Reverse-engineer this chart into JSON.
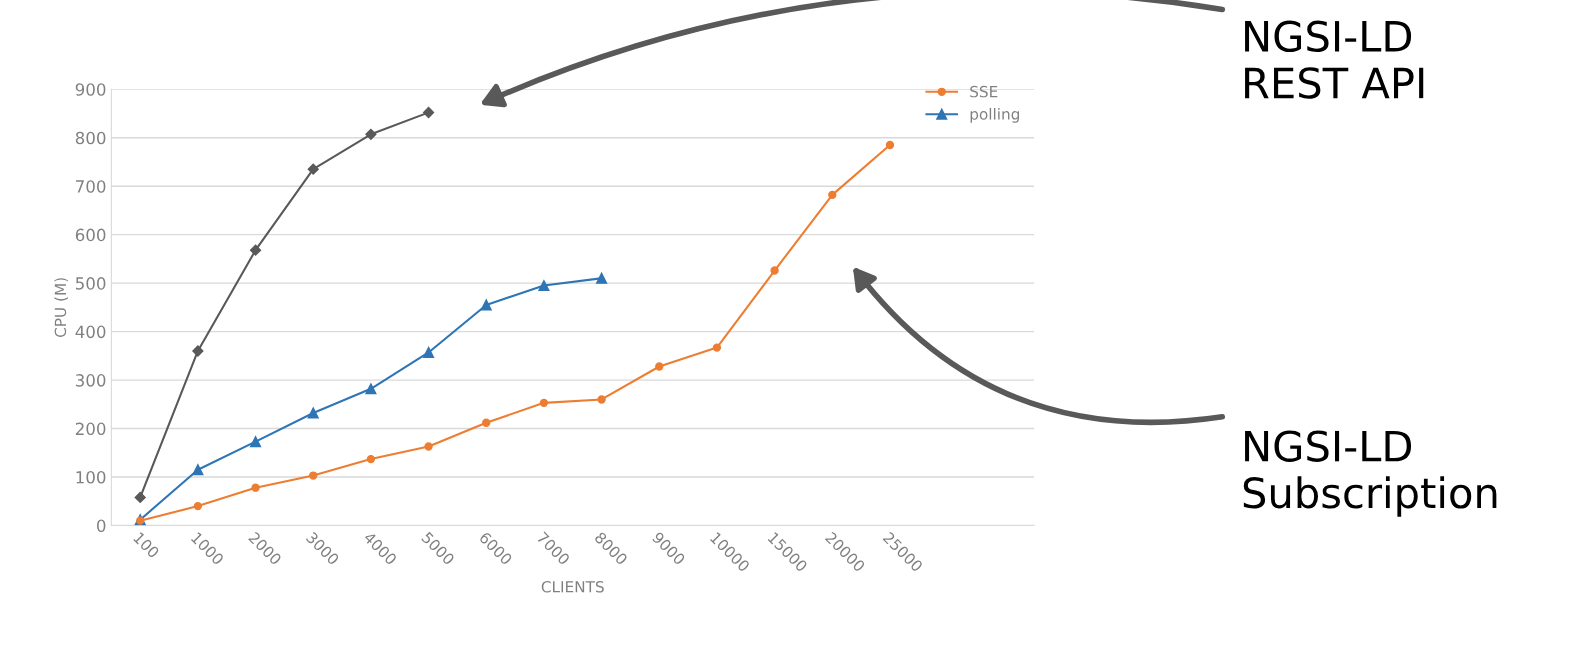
{
  "chart_data": {
    "type": "line",
    "categories": [
      "100",
      "1000",
      "2000",
      "3000",
      "4000",
      "5000",
      "6000",
      "7000",
      "8000",
      "9000",
      "10000",
      "15000",
      "20000",
      "25000",
      null,
      null
    ],
    "series": [
      {
        "name": "SSE",
        "color": "#ed7d31",
        "marker": "circle",
        "values": [
          10,
          40,
          78,
          103,
          137,
          163,
          212,
          253,
          260,
          328,
          367,
          526,
          682,
          785,
          null,
          null
        ]
      },
      {
        "name": "polling",
        "color": "#2e75b6",
        "marker": "triangle",
        "values": [
          12,
          115,
          173,
          232,
          282,
          357,
          455,
          495,
          510,
          null,
          null,
          null,
          null,
          null,
          null,
          null
        ]
      },
      {
        "color": "#595959",
        "marker": "diamond",
        "values": [
          58,
          360,
          568,
          735,
          807,
          852,
          null,
          null,
          null,
          null,
          null,
          null,
          null,
          null,
          null,
          null
        ]
      }
    ],
    "xlabel": "CLIENTS",
    "ylabel": "CPU (M)",
    "ylim": [
      0,
      900
    ],
    "yticks": [
      0,
      100,
      200,
      300,
      400,
      500,
      600,
      700,
      800,
      900
    ],
    "grid": "y",
    "legend": "top right",
    "line_style": "solid",
    "annotations": [
      "NGSI-LD\nREST API",
      "NGSI-LD\nSubscription"
    ]
  }
}
